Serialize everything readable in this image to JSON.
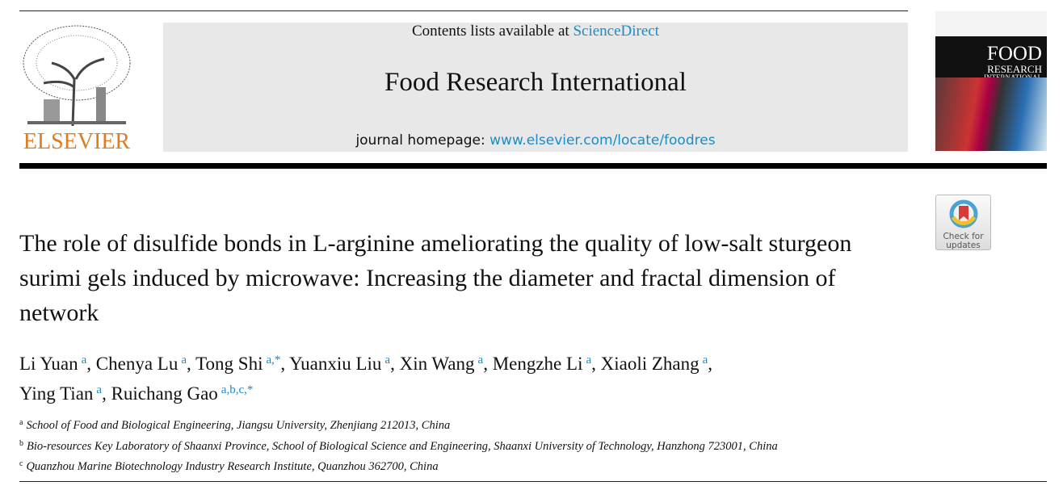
{
  "header": {
    "publisher": "ELSEVIER",
    "contents_prefix": "Contents lists available at ",
    "contents_link": "ScienceDirect",
    "journal_title": "Food Research International",
    "homepage_prefix": "journal homepage: ",
    "homepage_link": "www.elsevier.com/locate/foodres",
    "cover_title": [
      "FOOD",
      "RESEARCH",
      "INTERNATIONAL"
    ],
    "link_color": "#1e8bc3",
    "publisher_color": "#e07b1e"
  },
  "check_updates": {
    "line1": "Check for",
    "line2": "updates"
  },
  "article": {
    "title": "The role of disulfide bonds in L-arginine ameliorating the quality of low-salt sturgeon surimi gels induced by microwave: Increasing the diameter and fractal dimension of network",
    "authors": [
      {
        "name": "Li Yuan",
        "aff": "a"
      },
      {
        "name": "Chenya Lu",
        "aff": "a"
      },
      {
        "name": "Tong Shi",
        "aff": "a,*"
      },
      {
        "name": "Yuanxiu Liu",
        "aff": "a"
      },
      {
        "name": "Xin Wang",
        "aff": "a"
      },
      {
        "name": "Mengzhe Li",
        "aff": "a"
      },
      {
        "name": "Xiaoli Zhang",
        "aff": "a"
      },
      {
        "name": "Ying Tian",
        "aff": "a"
      },
      {
        "name": "Ruichang Gao",
        "aff": "a,b,c,*"
      }
    ],
    "affiliations": [
      {
        "mark": "a",
        "text": "School of Food and Biological Engineering, Jiangsu University, Zhenjiang 212013, China"
      },
      {
        "mark": "b",
        "text": "Bio-resources Key Laboratory of Shaanxi Province, School of Biological Science and Engineering, Shaanxi University of Technology, Hanzhong 723001, China"
      },
      {
        "mark": "c",
        "text": "Quanzhou Marine Biotechnology Industry Research Institute, Quanzhou 362700, China"
      }
    ]
  }
}
